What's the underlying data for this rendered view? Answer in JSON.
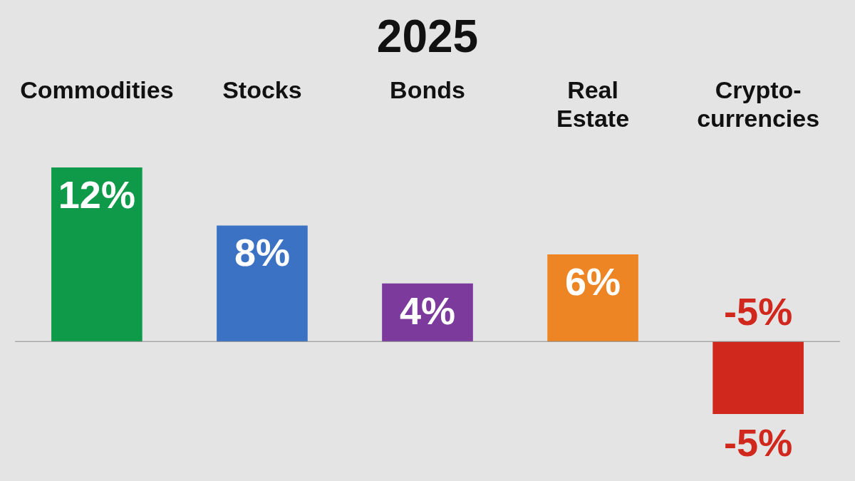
{
  "chart_data": {
    "type": "bar",
    "title": "2025",
    "categories": [
      "Commodities",
      "Stocks",
      "Bonds",
      "Real Estate",
      "Crypto-currencies"
    ],
    "values": [
      12,
      8,
      4,
      6,
      -5
    ],
    "colors": [
      "#0e9a48",
      "#3b72c4",
      "#7b3a9c",
      "#ee8525",
      "#d1281e"
    ],
    "value_labels": [
      "12%",
      "8%",
      "4%",
      "6%",
      "-5%"
    ],
    "annotations": [
      {
        "text": "-5%",
        "x": "Crypto-currencies",
        "y": 0
      }
    ],
    "ref_lines": [
      {
        "axis": "y",
        "value": 0,
        "color": "#8c8c8c"
      }
    ]
  }
}
